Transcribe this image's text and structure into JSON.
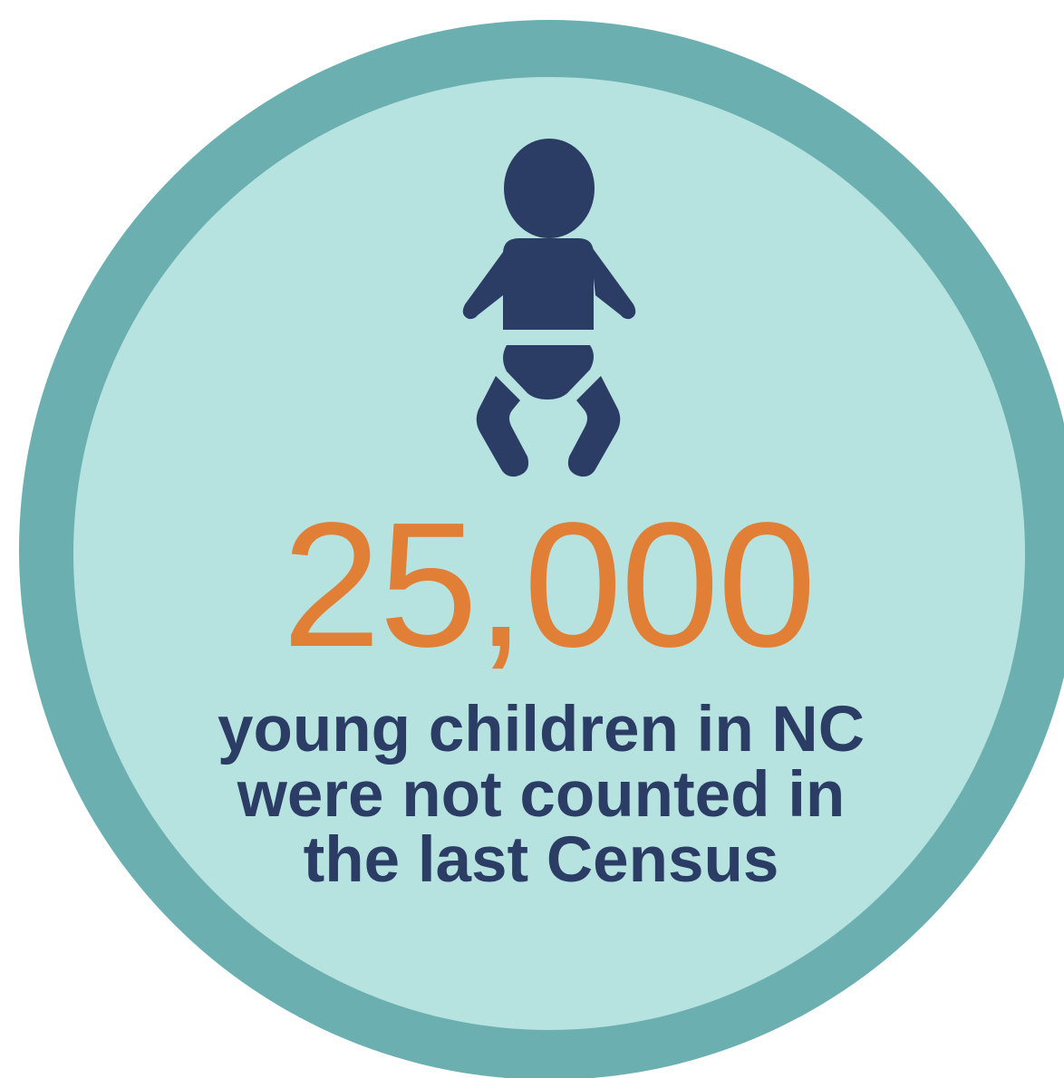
{
  "colors": {
    "ring": "#6cafb1",
    "disc": "#b6e3df",
    "icon": "#2b3c65",
    "stat": "#e07f35",
    "caption": "#2b3c65"
  },
  "icon": "baby-icon",
  "stat": {
    "value": "25,000"
  },
  "caption": {
    "line1": "young children in NC",
    "line2": "were not counted in",
    "line3": "the last Census"
  }
}
